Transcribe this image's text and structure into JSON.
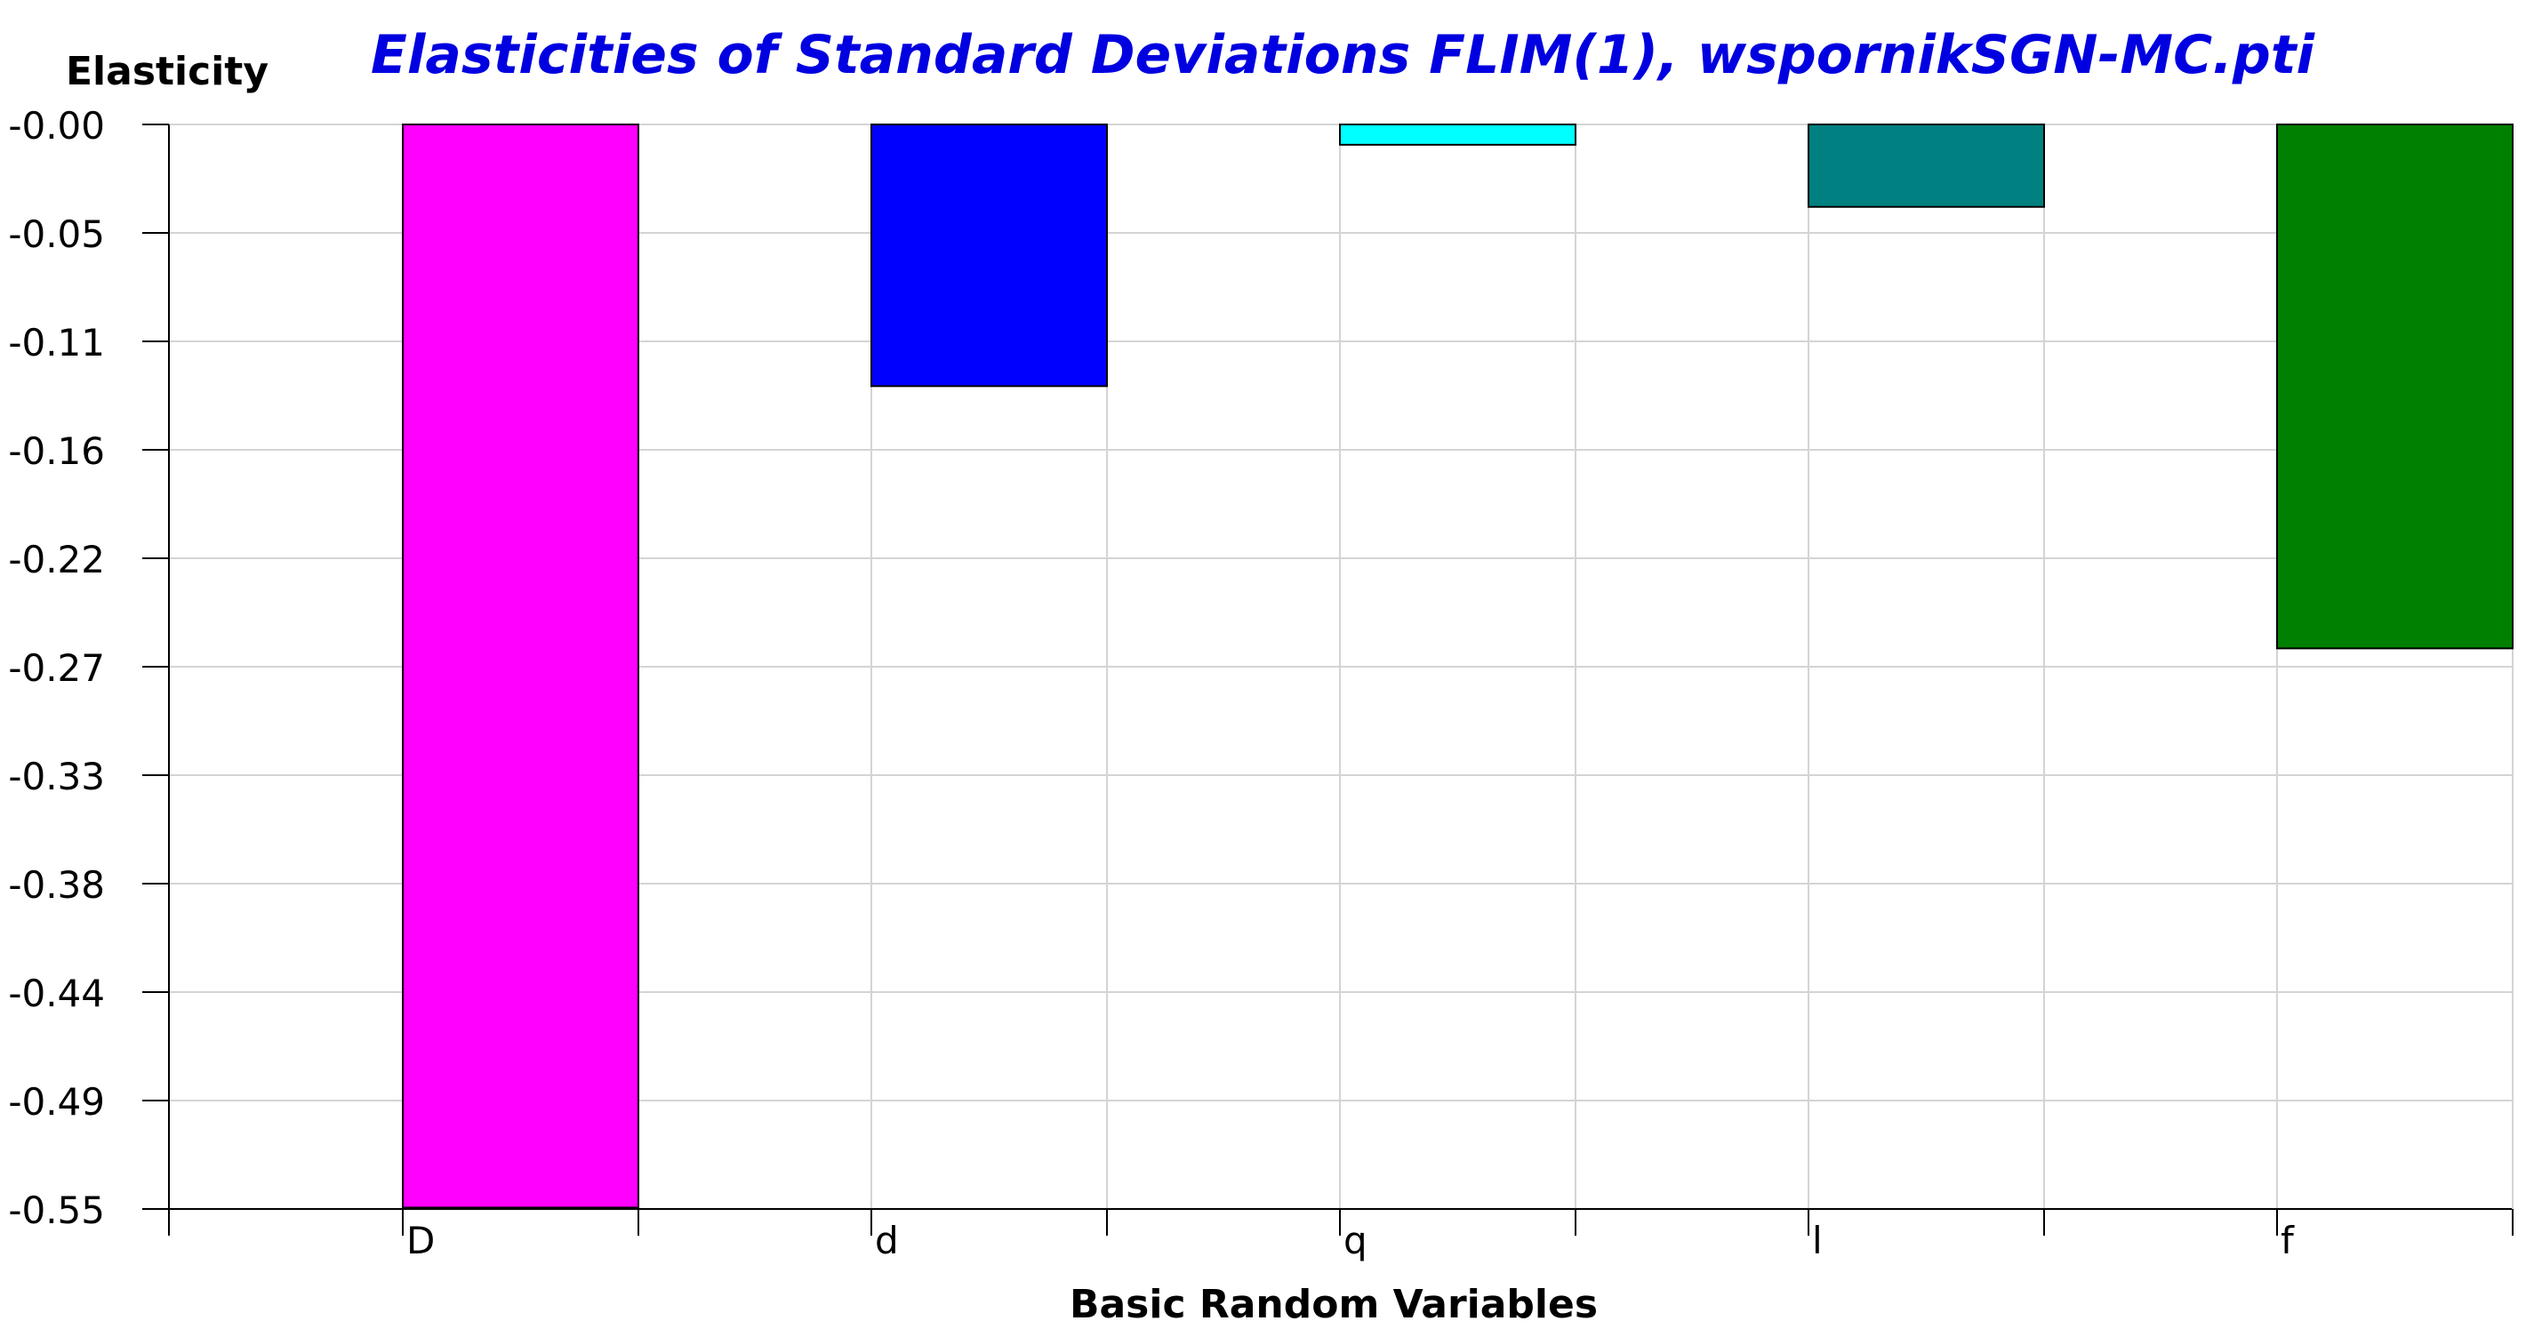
{
  "chart_data": {
    "type": "bar",
    "title": "Elasticities of Standard Deviations FLIM(1), wspornikSGN-MC.pti",
    "xlabel": "Basic Random Variables",
    "ylabel": "Elasticity",
    "categories": [
      "D",
      "d",
      "q",
      "l",
      "f"
    ],
    "values": [
      -0.5493,
      -0.1327,
      -0.0103,
      -0.0418,
      -0.2657
    ],
    "colors": [
      "#ff00ff",
      "#0000ff",
      "#00ffff",
      "#008080",
      "#008000"
    ],
    "yticks": [
      "-0.00",
      "-0.05",
      "-0.11",
      "-0.16",
      "-0.22",
      "-0.27",
      "-0.33",
      "-0.38",
      "-0.44",
      "-0.49",
      "-0.55"
    ],
    "ylim": [
      -0.55,
      0.0
    ],
    "grid": true,
    "legend": "none",
    "title_color": "#0000e0"
  }
}
